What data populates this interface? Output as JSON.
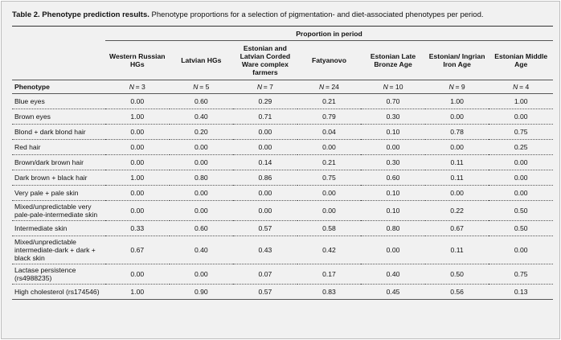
{
  "caption": {
    "title": "Table 2. Phenotype prediction results.",
    "text": "Phenotype proportions for a selection of pigmentation- and diet-associated phenotypes per period."
  },
  "table": {
    "group_header": "Proportion in period",
    "columns": [
      "Western Russian HGs",
      "Latvian HGs",
      "Estonian and Latvian Corded Ware complex farmers",
      "Fatyanovo",
      "Estonian Late Bronze Age",
      "Estonian/ Ingrian Iron Age",
      "Estonian Middle Age"
    ],
    "row_header": "Phenotype",
    "n_symbol": "N",
    "n_values": [
      "= 3",
      "= 5",
      "= 7",
      "= 24",
      "= 10",
      "= 9",
      "= 4"
    ],
    "rows": [
      [
        "Blue eyes",
        "0.00",
        "0.60",
        "0.29",
        "0.21",
        "0.70",
        "1.00",
        "1.00"
      ],
      [
        "Brown eyes",
        "1.00",
        "0.40",
        "0.71",
        "0.79",
        "0.30",
        "0.00",
        "0.00"
      ],
      [
        "Blond + dark blond hair",
        "0.00",
        "0.20",
        "0.00",
        "0.04",
        "0.10",
        "0.78",
        "0.75"
      ],
      [
        "Red hair",
        "0.00",
        "0.00",
        "0.00",
        "0.00",
        "0.00",
        "0.00",
        "0.25"
      ],
      [
        "Brown/dark brown hair",
        "0.00",
        "0.00",
        "0.14",
        "0.21",
        "0.30",
        "0.11",
        "0.00"
      ],
      [
        "Dark brown + black hair",
        "1.00",
        "0.80",
        "0.86",
        "0.75",
        "0.60",
        "0.11",
        "0.00"
      ],
      [
        "Very pale + pale skin",
        "0.00",
        "0.00",
        "0.00",
        "0.00",
        "0.10",
        "0.00",
        "0.00"
      ],
      [
        "Mixed/unpredictable very pale-pale-intermediate skin",
        "0.00",
        "0.00",
        "0.00",
        "0.00",
        "0.10",
        "0.22",
        "0.50"
      ],
      [
        "Intermediate skin",
        "0.33",
        "0.60",
        "0.57",
        "0.58",
        "0.80",
        "0.67",
        "0.50"
      ],
      [
        "Mixed/unpredictable intermediate-dark + dark + black skin",
        "0.67",
        "0.40",
        "0.43",
        "0.42",
        "0.00",
        "0.11",
        "0.00"
      ],
      [
        "Lactase persistence (rs4988235)",
        "0.00",
        "0.00",
        "0.07",
        "0.17",
        "0.40",
        "0.50",
        "0.75"
      ],
      [
        "High cholesterol (rs174546)",
        "1.00",
        "0.90",
        "0.57",
        "0.83",
        "0.45",
        "0.56",
        "0.13"
      ]
    ]
  }
}
